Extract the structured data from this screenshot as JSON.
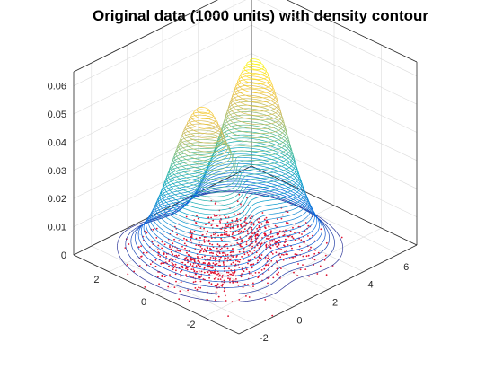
{
  "chart_data": {
    "type": "surface-contour",
    "title": "Original data (1000 units) with density contour",
    "xlabel": "",
    "ylabel": "",
    "zlabel": "",
    "xlim": [
      -3,
      7
    ],
    "ylim": [
      -3.5,
      3.5
    ],
    "zlim": [
      0,
      0.065
    ],
    "x_ticks": [
      "-2",
      "0",
      "2",
      "4",
      "6"
    ],
    "y_ticks": [
      "-2",
      "0",
      "2"
    ],
    "z_ticks": [
      "0",
      "0.01",
      "0.02",
      "0.03",
      "0.04",
      "0.05",
      "0.06"
    ],
    "grid": true,
    "colormap": "parula",
    "point_color": "#e0102f",
    "point_count": 1000,
    "density_peaks": [
      {
        "x": 0,
        "y": 0.3,
        "height": 0.055
      },
      {
        "x": 3,
        "y": 0.3,
        "height": 0.063
      }
    ]
  }
}
